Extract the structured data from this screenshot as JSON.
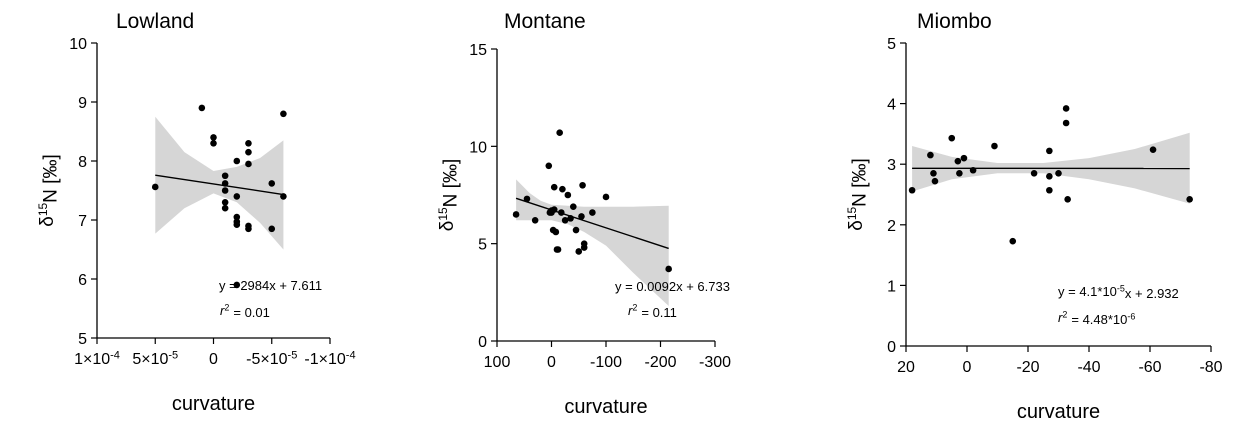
{
  "chart_data": [
    {
      "type": "scatter",
      "title": "Lowland",
      "xlabel": "curvature",
      "ylabel_parts": {
        "delta": "δ",
        "sup": "15",
        "rest": "N [‰]"
      },
      "x_reversed": true,
      "xlim": [
        0.0001,
        -0.0001
      ],
      "ylim": [
        5,
        10
      ],
      "xticks": [
        0.0001,
        5e-05,
        0,
        -5e-05,
        -0.0001
      ],
      "xtick_labels": [
        "1×10",
        "5×10",
        "0",
        "-5×10",
        "-1×10"
      ],
      "xtick_exps": [
        "-4",
        "-5",
        "",
        "-5",
        "-4"
      ],
      "yticks": [
        5,
        6,
        7,
        8,
        9,
        10
      ],
      "ytick_labels": [
        "5",
        "6",
        "7",
        "8",
        "9",
        "10"
      ],
      "points": [
        {
          "x": 5e-05,
          "y": 7.56
        },
        {
          "x": 1e-05,
          "y": 8.9
        },
        {
          "x": 0.0,
          "y": 8.4
        },
        {
          "x": 0.0,
          "y": 8.3
        },
        {
          "x": -1e-05,
          "y": 7.75
        },
        {
          "x": -1e-05,
          "y": 7.62
        },
        {
          "x": -1e-05,
          "y": 7.5
        },
        {
          "x": -1e-05,
          "y": 7.3
        },
        {
          "x": -1e-05,
          "y": 7.2
        },
        {
          "x": -2e-05,
          "y": 8.0
        },
        {
          "x": -2e-05,
          "y": 7.4
        },
        {
          "x": -2e-05,
          "y": 7.05
        },
        {
          "x": -2e-05,
          "y": 6.97
        },
        {
          "x": -2e-05,
          "y": 6.92
        },
        {
          "x": -2e-05,
          "y": 5.9
        },
        {
          "x": -3e-05,
          "y": 8.3
        },
        {
          "x": -3e-05,
          "y": 8.15
        },
        {
          "x": -3e-05,
          "y": 7.95
        },
        {
          "x": -3e-05,
          "y": 6.9
        },
        {
          "x": -3e-05,
          "y": 6.85
        },
        {
          "x": -5e-05,
          "y": 7.62
        },
        {
          "x": -5e-05,
          "y": 6.85
        },
        {
          "x": -6e-05,
          "y": 8.8
        },
        {
          "x": -6e-05,
          "y": 7.4
        }
      ],
      "fit": {
        "slope": 2984,
        "intercept": 7.611
      },
      "ci_band": {
        "x": [
          5e-05,
          2.5e-05,
          0.0,
          -2e-05,
          -4e-05,
          -6e-05
        ],
        "lower": [
          6.77,
          7.2,
          7.45,
          7.3,
          6.95,
          6.5
        ],
        "upper": [
          8.75,
          8.15,
          7.83,
          7.9,
          8.05,
          8.35
        ]
      },
      "equation": "y = 2984x + 7.611",
      "r2_label": "r",
      "r2_sup": "2",
      "r2_value": "= 0.01"
    },
    {
      "type": "scatter",
      "title": "Montane",
      "xlabel": "curvature",
      "ylabel_parts": {
        "delta": "δ",
        "sup": "15",
        "rest": "N [‰]"
      },
      "x_reversed": true,
      "xlim": [
        100,
        -300
      ],
      "ylim": [
        0,
        15
      ],
      "xticks": [
        100,
        0,
        -100,
        -200,
        -300
      ],
      "xtick_labels": [
        "100",
        "0",
        "-100",
        "-200",
        "-300"
      ],
      "xtick_exps": [
        "",
        "",
        "",
        "",
        ""
      ],
      "yticks": [
        0,
        5,
        10,
        15
      ],
      "ytick_labels": [
        "0",
        "5",
        "10",
        "15"
      ],
      "points": [
        {
          "x": 65,
          "y": 6.5
        },
        {
          "x": 45,
          "y": 7.3
        },
        {
          "x": 30,
          "y": 6.2
        },
        {
          "x": 5,
          "y": 9.0
        },
        {
          "x": 3,
          "y": 6.6
        },
        {
          "x": 0,
          "y": 6.7
        },
        {
          "x": 0,
          "y": 6.6
        },
        {
          "x": -3,
          "y": 5.7
        },
        {
          "x": -5,
          "y": 7.9
        },
        {
          "x": -5,
          "y": 6.75
        },
        {
          "x": -8,
          "y": 5.6
        },
        {
          "x": -10,
          "y": 4.7
        },
        {
          "x": -12,
          "y": 4.7
        },
        {
          "x": -15,
          "y": 10.7
        },
        {
          "x": -18,
          "y": 6.6
        },
        {
          "x": -20,
          "y": 7.8
        },
        {
          "x": -25,
          "y": 6.2
        },
        {
          "x": -30,
          "y": 7.5
        },
        {
          "x": -35,
          "y": 6.3
        },
        {
          "x": -40,
          "y": 6.9
        },
        {
          "x": -45,
          "y": 5.7
        },
        {
          "x": -50,
          "y": 4.6
        },
        {
          "x": -55,
          "y": 6.4
        },
        {
          "x": -57,
          "y": 8.0
        },
        {
          "x": -60,
          "y": 5.0
        },
        {
          "x": -60,
          "y": 4.8
        },
        {
          "x": -75,
          "y": 6.6
        },
        {
          "x": -100,
          "y": 7.4
        },
        {
          "x": -215,
          "y": 3.7
        }
      ],
      "fit": {
        "slope": 0.0092,
        "intercept": 6.733
      },
      "ci_band": {
        "x": [
          65,
          40,
          20,
          0,
          -30,
          -60,
          -100,
          -150,
          -215
        ],
        "lower": [
          6.2,
          6.2,
          6.2,
          6.2,
          6.0,
          5.6,
          4.9,
          3.5,
          1.8
        ],
        "upper": [
          8.3,
          7.6,
          7.2,
          7.0,
          6.95,
          6.9,
          6.9,
          6.9,
          6.95
        ]
      },
      "equation": "y = 0.0092x + 6.733",
      "r2_label": "r",
      "r2_sup": "2",
      "r2_value": "= 0.11"
    },
    {
      "type": "scatter",
      "title": "Miombo",
      "xlabel": "curvature",
      "ylabel_parts": {
        "delta": "δ",
        "sup": "15",
        "rest": "N [‰]"
      },
      "x_reversed": true,
      "xlim": [
        20,
        -80
      ],
      "ylim": [
        0,
        5
      ],
      "xticks": [
        20,
        0,
        -20,
        -40,
        -60,
        -80
      ],
      "xtick_labels": [
        "20",
        "0",
        "-20",
        "-40",
        "-60",
        "-80"
      ],
      "xtick_exps": [
        "",
        "",
        "",
        "",
        "",
        ""
      ],
      "yticks": [
        0,
        1,
        2,
        3,
        4,
        5
      ],
      "ytick_labels": [
        "0",
        "1",
        "2",
        "3",
        "4",
        "5"
      ],
      "points": [
        {
          "x": 18,
          "y": 2.57
        },
        {
          "x": 12,
          "y": 3.15
        },
        {
          "x": 11,
          "y": 2.85
        },
        {
          "x": 10.5,
          "y": 2.72
        },
        {
          "x": 5,
          "y": 3.43
        },
        {
          "x": 3,
          "y": 3.05
        },
        {
          "x": 2.5,
          "y": 2.85
        },
        {
          "x": 1,
          "y": 3.1
        },
        {
          "x": -2,
          "y": 2.9
        },
        {
          "x": -9,
          "y": 3.3
        },
        {
          "x": -15,
          "y": 1.73
        },
        {
          "x": -22,
          "y": 2.85
        },
        {
          "x": -27,
          "y": 3.22
        },
        {
          "x": -27,
          "y": 2.57
        },
        {
          "x": -27,
          "y": 2.8
        },
        {
          "x": -30,
          "y": 2.85
        },
        {
          "x": -32.5,
          "y": 3.92
        },
        {
          "x": -32.5,
          "y": 3.68
        },
        {
          "x": -33,
          "y": 2.42
        },
        {
          "x": -61,
          "y": 3.24
        },
        {
          "x": -73,
          "y": 2.42
        }
      ],
      "fit": {
        "slope": 4.1e-05,
        "intercept": 2.932
      },
      "ci_band": {
        "x": [
          18,
          5,
          -10,
          -25,
          -40,
          -55,
          -73
        ],
        "lower": [
          2.55,
          2.75,
          2.85,
          2.85,
          2.75,
          2.6,
          2.35
        ],
        "upper": [
          3.3,
          3.12,
          3.02,
          3.02,
          3.1,
          3.25,
          3.52
        ]
      },
      "equation_parts": {
        "a": "y = 4.1*10",
        "a_sup": "-5",
        "b": "x + 2.932"
      },
      "r2_label": "r",
      "r2_sup": "2",
      "r2_value_parts": {
        "a": "= 4.48*10",
        "a_sup": "-6"
      }
    }
  ]
}
